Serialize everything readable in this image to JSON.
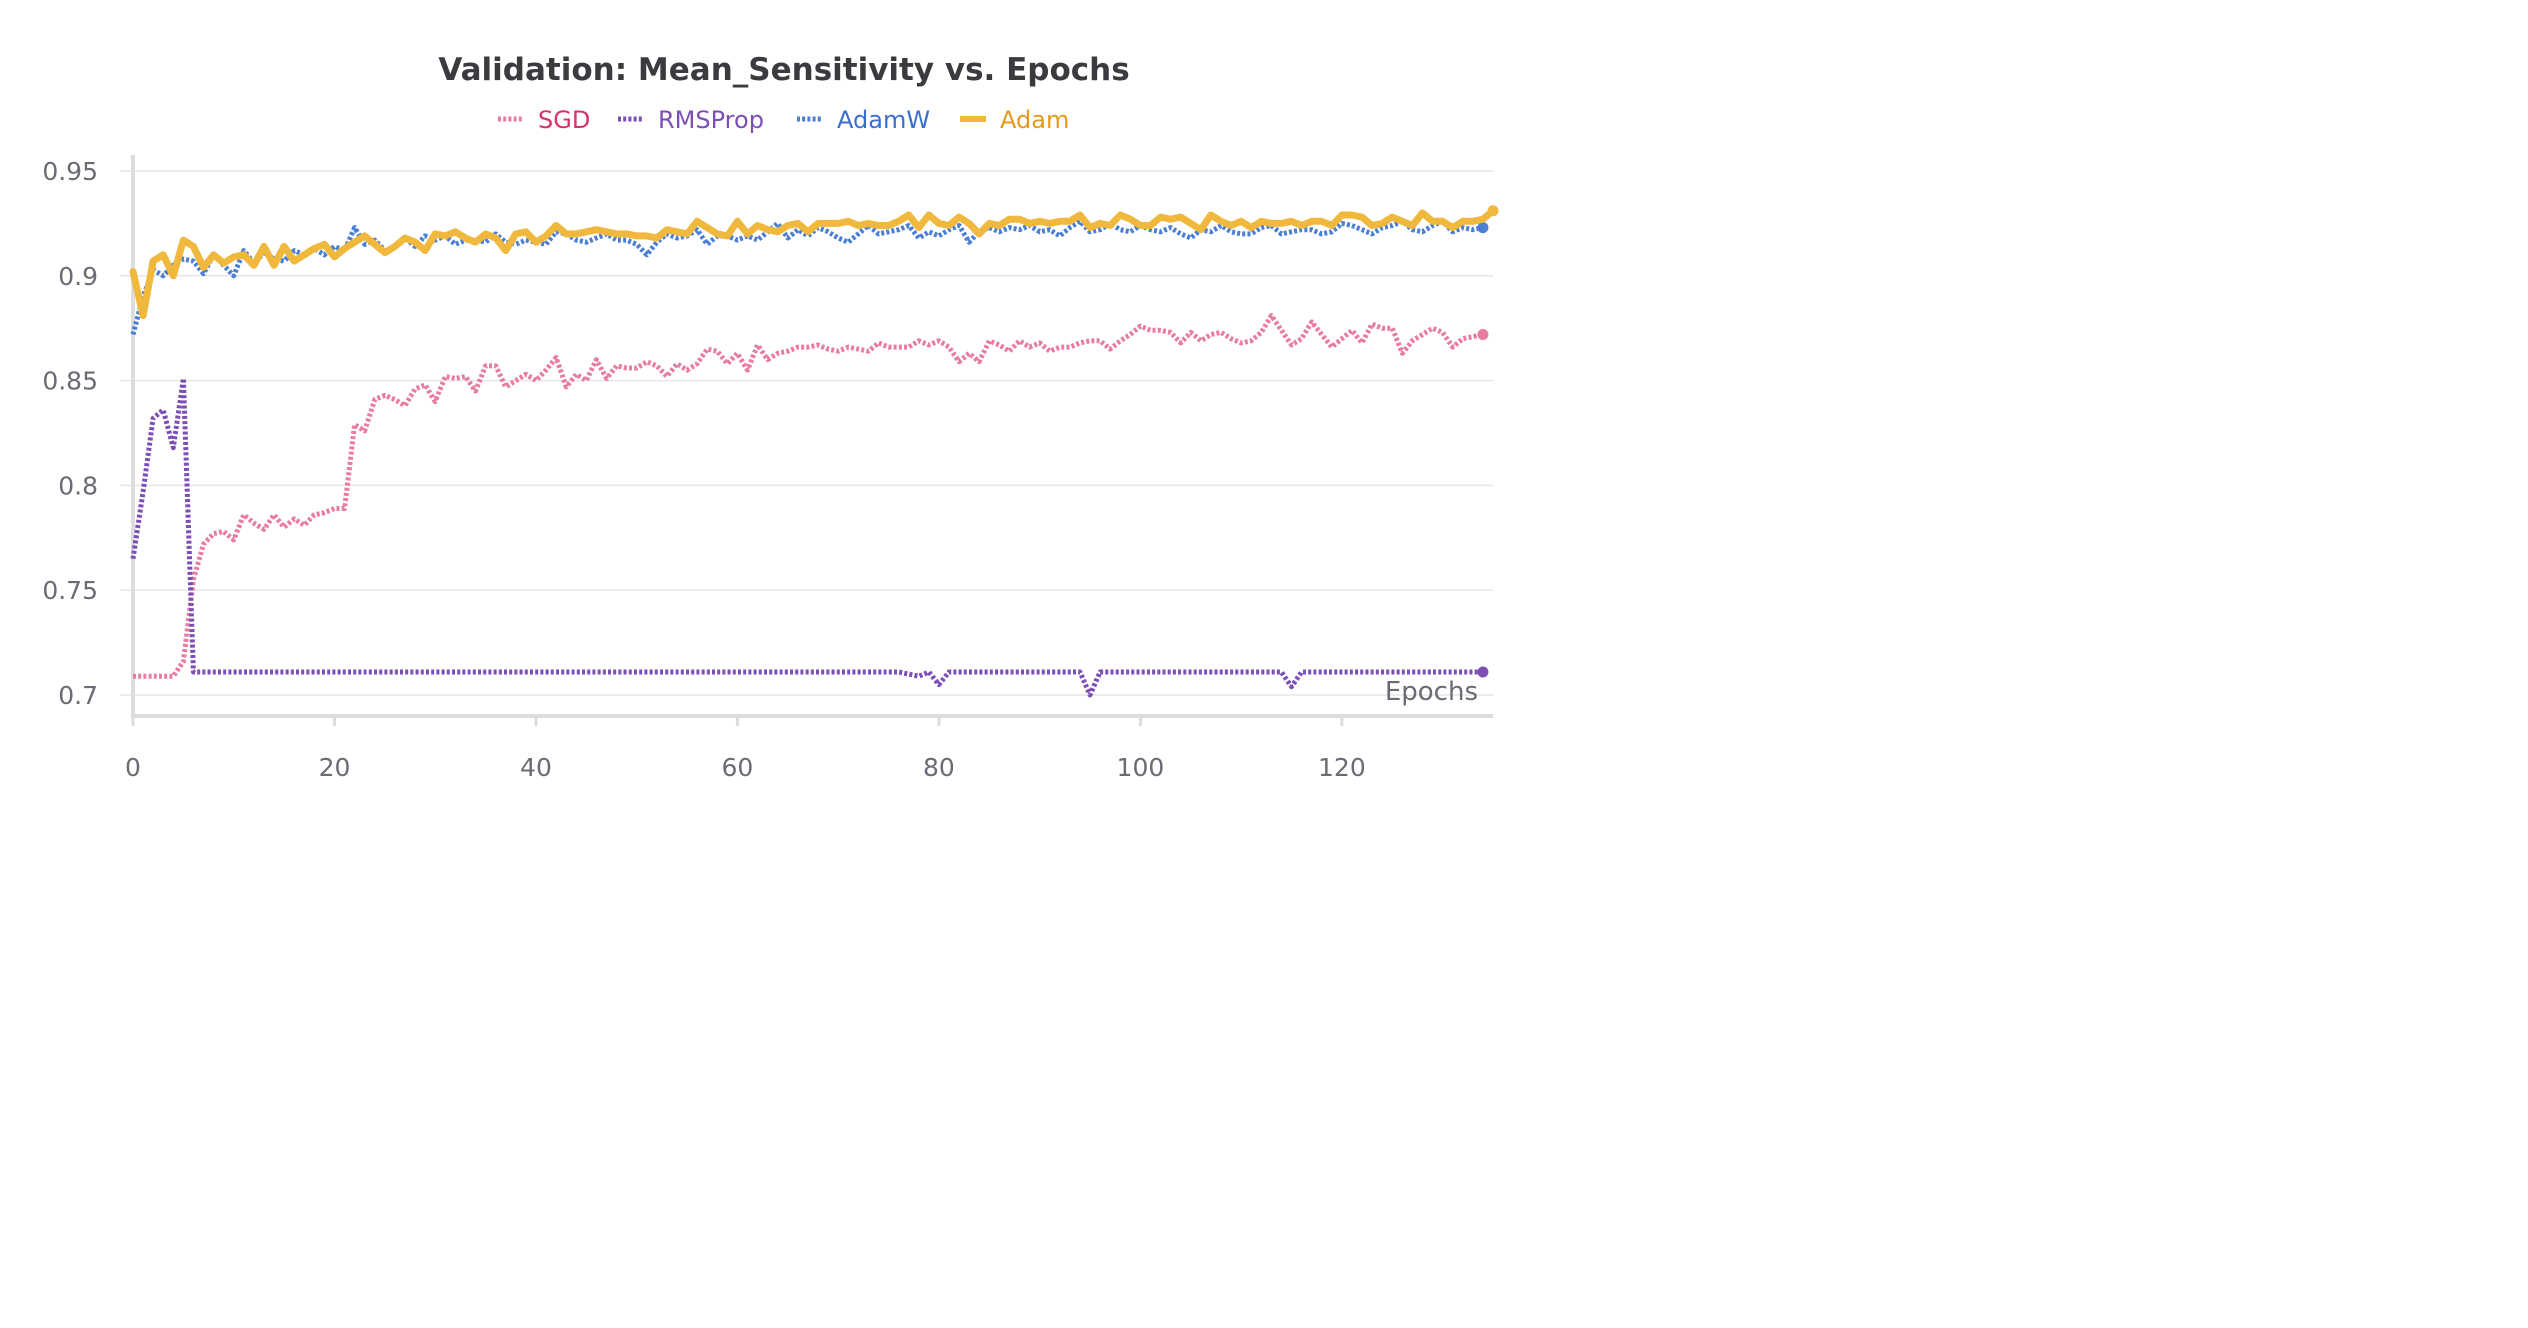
{
  "chart_data": {
    "type": "line",
    "title": "Validation: Mean_Sensitivity vs. Epochs",
    "xlabel": "Epochs",
    "ylabel": "",
    "xlim": [
      0,
      135
    ],
    "ylim": [
      0.69,
      0.96
    ],
    "x_ticks": [
      0,
      20,
      40,
      60,
      80,
      100,
      120
    ],
    "y_ticks": [
      0.7,
      0.75,
      0.8,
      0.85,
      0.9,
      0.95
    ],
    "y_tick_labels": [
      "0.7",
      "0.75",
      "0.8",
      "0.85",
      "0.9",
      "0.95"
    ],
    "grid": true,
    "legend_position": "top-center",
    "series": [
      {
        "name": "SGD",
        "color": "#e87ca3",
        "label_color": "#d6336c",
        "style": "dotted",
        "values": [
          0.709,
          0.709,
          0.709,
          0.709,
          0.709,
          0.716,
          0.755,
          0.772,
          0.777,
          0.778,
          0.774,
          0.786,
          0.782,
          0.779,
          0.786,
          0.78,
          0.784,
          0.781,
          0.786,
          0.787,
          0.789,
          0.789,
          0.829,
          0.826,
          0.841,
          0.843,
          0.841,
          0.838,
          0.846,
          0.848,
          0.84,
          0.852,
          0.851,
          0.852,
          0.845,
          0.857,
          0.857,
          0.847,
          0.85,
          0.853,
          0.85,
          0.855,
          0.861,
          0.847,
          0.853,
          0.85,
          0.86,
          0.851,
          0.857,
          0.856,
          0.856,
          0.859,
          0.857,
          0.852,
          0.858,
          0.855,
          0.858,
          0.865,
          0.864,
          0.858,
          0.863,
          0.855,
          0.867,
          0.86,
          0.863,
          0.864,
          0.866,
          0.866,
          0.867,
          0.865,
          0.864,
          0.866,
          0.865,
          0.864,
          0.868,
          0.866,
          0.866,
          0.866,
          0.869,
          0.867,
          0.869,
          0.866,
          0.859,
          0.863,
          0.859,
          0.869,
          0.867,
          0.864,
          0.869,
          0.866,
          0.868,
          0.864,
          0.866,
          0.866,
          0.868,
          0.869,
          0.869,
          0.865,
          0.869,
          0.872,
          0.876,
          0.874,
          0.874,
          0.873,
          0.868,
          0.873,
          0.869,
          0.872,
          0.873,
          0.87,
          0.868,
          0.869,
          0.873,
          0.881,
          0.874,
          0.867,
          0.87,
          0.878,
          0.872,
          0.866,
          0.87,
          0.874,
          0.868,
          0.877,
          0.875,
          0.875,
          0.863,
          0.869,
          0.872,
          0.875,
          0.873,
          0.866,
          0.87,
          0.871,
          0.872
        ]
      },
      {
        "name": "RMSProp",
        "color": "#7b4fb5",
        "label_color": "#7b4fb5",
        "style": "dotted",
        "values": [
          0.765,
          0.797,
          0.832,
          0.836,
          0.818,
          0.851,
          0.711,
          0.711,
          0.711,
          0.711,
          0.711,
          0.711,
          0.711,
          0.711,
          0.711,
          0.711,
          0.711,
          0.711,
          0.711,
          0.711,
          0.711,
          0.711,
          0.711,
          0.711,
          0.711,
          0.711,
          0.711,
          0.711,
          0.711,
          0.711,
          0.711,
          0.711,
          0.711,
          0.711,
          0.711,
          0.711,
          0.711,
          0.711,
          0.711,
          0.711,
          0.711,
          0.711,
          0.711,
          0.711,
          0.711,
          0.711,
          0.711,
          0.711,
          0.711,
          0.711,
          0.711,
          0.711,
          0.711,
          0.711,
          0.711,
          0.711,
          0.711,
          0.711,
          0.711,
          0.711,
          0.711,
          0.711,
          0.711,
          0.711,
          0.711,
          0.711,
          0.711,
          0.711,
          0.711,
          0.711,
          0.711,
          0.711,
          0.711,
          0.711,
          0.711,
          0.711,
          0.711,
          0.71,
          0.709,
          0.711,
          0.705,
          0.711,
          0.711,
          0.711,
          0.711,
          0.711,
          0.711,
          0.711,
          0.711,
          0.711,
          0.711,
          0.711,
          0.711,
          0.711,
          0.711,
          0.7,
          0.711,
          0.711,
          0.711,
          0.711,
          0.711,
          0.711,
          0.711,
          0.711,
          0.711,
          0.711,
          0.711,
          0.711,
          0.711,
          0.711,
          0.711,
          0.711,
          0.711,
          0.711,
          0.711,
          0.704,
          0.711,
          0.711,
          0.711,
          0.711,
          0.711,
          0.711,
          0.711,
          0.711,
          0.711,
          0.711,
          0.711,
          0.711,
          0.711,
          0.711,
          0.711,
          0.711,
          0.711,
          0.711,
          0.711
        ]
      },
      {
        "name": "AdamW",
        "color": "#4a7fd4",
        "label_color": "#3a6fcf",
        "style": "dotted",
        "values": [
          0.872,
          0.89,
          0.903,
          0.9,
          0.905,
          0.908,
          0.907,
          0.901,
          0.91,
          0.905,
          0.9,
          0.912,
          0.906,
          0.911,
          0.908,
          0.907,
          0.912,
          0.91,
          0.913,
          0.91,
          0.914,
          0.912,
          0.923,
          0.915,
          0.917,
          0.912,
          0.914,
          0.918,
          0.914,
          0.919,
          0.917,
          0.919,
          0.915,
          0.917,
          0.917,
          0.916,
          0.92,
          0.916,
          0.915,
          0.917,
          0.916,
          0.915,
          0.921,
          0.92,
          0.917,
          0.916,
          0.918,
          0.92,
          0.917,
          0.917,
          0.915,
          0.91,
          0.916,
          0.92,
          0.918,
          0.919,
          0.922,
          0.915,
          0.919,
          0.919,
          0.917,
          0.919,
          0.917,
          0.921,
          0.925,
          0.918,
          0.922,
          0.919,
          0.923,
          0.921,
          0.918,
          0.916,
          0.92,
          0.924,
          0.92,
          0.921,
          0.922,
          0.924,
          0.918,
          0.921,
          0.919,
          0.922,
          0.924,
          0.916,
          0.921,
          0.923,
          0.921,
          0.923,
          0.922,
          0.924,
          0.921,
          0.922,
          0.919,
          0.923,
          0.926,
          0.921,
          0.922,
          0.925,
          0.922,
          0.921,
          0.924,
          0.922,
          0.921,
          0.923,
          0.92,
          0.918,
          0.922,
          0.921,
          0.924,
          0.921,
          0.92,
          0.92,
          0.923,
          0.924,
          0.92,
          0.921,
          0.922,
          0.922,
          0.92,
          0.921,
          0.925,
          0.924,
          0.922,
          0.92,
          0.923,
          0.924,
          0.926,
          0.922,
          0.921,
          0.924,
          0.926,
          0.921,
          0.923,
          0.922,
          0.923
        ]
      },
      {
        "name": "Adam",
        "color": "#f0b83c",
        "label_color": "#e29b1a",
        "style": "solid",
        "values": [
          0.902,
          0.881,
          0.907,
          0.91,
          0.9,
          0.917,
          0.914,
          0.904,
          0.91,
          0.906,
          0.909,
          0.91,
          0.905,
          0.914,
          0.905,
          0.914,
          0.907,
          0.91,
          0.913,
          0.915,
          0.909,
          0.913,
          0.916,
          0.919,
          0.915,
          0.911,
          0.914,
          0.918,
          0.916,
          0.912,
          0.92,
          0.919,
          0.921,
          0.918,
          0.916,
          0.92,
          0.918,
          0.912,
          0.92,
          0.921,
          0.916,
          0.919,
          0.924,
          0.92,
          0.92,
          0.921,
          0.922,
          0.921,
          0.92,
          0.92,
          0.919,
          0.919,
          0.918,
          0.922,
          0.921,
          0.92,
          0.926,
          0.923,
          0.92,
          0.919,
          0.926,
          0.92,
          0.924,
          0.922,
          0.921,
          0.924,
          0.925,
          0.921,
          0.925,
          0.925,
          0.925,
          0.926,
          0.924,
          0.925,
          0.924,
          0.924,
          0.926,
          0.929,
          0.923,
          0.929,
          0.925,
          0.924,
          0.928,
          0.925,
          0.92,
          0.925,
          0.924,
          0.927,
          0.927,
          0.925,
          0.926,
          0.925,
          0.926,
          0.926,
          0.929,
          0.923,
          0.925,
          0.924,
          0.929,
          0.927,
          0.924,
          0.924,
          0.928,
          0.927,
          0.928,
          0.925,
          0.922,
          0.929,
          0.926,
          0.924,
          0.926,
          0.923,
          0.926,
          0.925,
          0.925,
          0.926,
          0.924,
          0.926,
          0.926,
          0.924,
          0.929,
          0.929,
          0.928,
          0.924,
          0.925,
          0.928,
          0.926,
          0.924,
          0.93,
          0.926,
          0.926,
          0.923,
          0.926,
          0.926,
          0.927,
          0.931
        ]
      }
    ]
  }
}
